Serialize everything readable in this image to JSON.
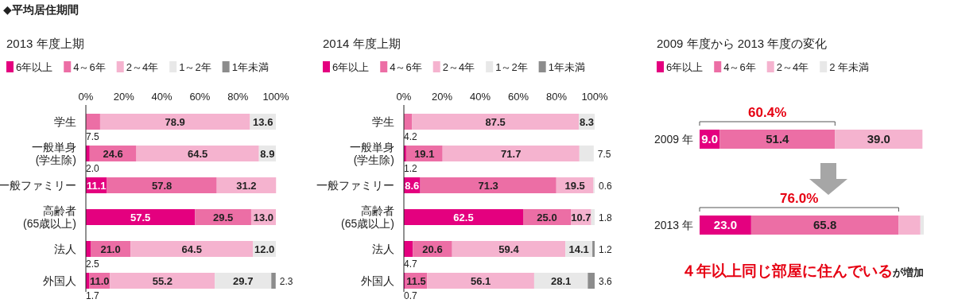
{
  "chart_data": [
    {
      "type": "bar",
      "orientation": "horizontal",
      "stacked": true,
      "title": "2013 年度上期",
      "annotations": [
        "◆平均居住期間"
      ],
      "categories": [
        "学生",
        "一般単身\n(学生除)",
        "一般ファミリー",
        "高齢者\n(65歳以上)",
        "法人",
        "外国人"
      ],
      "series": [
        {
          "name": "6年以上",
          "color": "#e4007f",
          "values": [
            null,
            2.0,
            11.1,
            57.5,
            2.5,
            1.7
          ],
          "value_labels": [
            null,
            "2.0",
            "11.1",
            "57.5",
            "2.5",
            "1.7"
          ]
        },
        {
          "name": "4～6年",
          "color": "#ec6ea5",
          "values": [
            7.5,
            24.6,
            57.8,
            29.5,
            21.0,
            11.0
          ],
          "value_labels": [
            "7.5",
            "24.6",
            "57.8",
            "29.5",
            "21.0",
            "11.0"
          ]
        },
        {
          "name": "2～4年",
          "color": "#f5b3cf",
          "values": [
            78.9,
            64.5,
            31.2,
            13.0,
            64.5,
            55.2
          ],
          "value_labels": [
            "78.9",
            "64.5",
            "31.2",
            "13.0",
            "64.5",
            "55.2"
          ]
        },
        {
          "name": "1～2年",
          "color": "#e8e8e8",
          "values": [
            13.6,
            8.9,
            null,
            null,
            12.0,
            29.7
          ],
          "value_labels": [
            "13.6",
            "8.9",
            null,
            null,
            "12.0",
            "29.7"
          ]
        },
        {
          "name": "1年未満",
          "color": "#8c8c8c",
          "values": [
            null,
            null,
            null,
            null,
            null,
            2.3
          ],
          "value_labels": [
            null,
            null,
            null,
            null,
            null,
            "2.3"
          ]
        }
      ],
      "xlim": [
        0,
        100
      ],
      "xticks": [
        {
          "value": 0,
          "label": "0%"
        },
        {
          "value": 20,
          "label": "20%"
        },
        {
          "value": 40,
          "label": "40%"
        },
        {
          "value": 60,
          "label": "60%"
        },
        {
          "value": 80,
          "label": "80%"
        },
        {
          "value": 100,
          "label": "100%"
        }
      ],
      "legend": "top left"
    },
    {
      "type": "bar",
      "orientation": "horizontal",
      "stacked": true,
      "title": "2014 年度上期",
      "categories": [
        "学生",
        "一般単身\n(学生除)",
        "一般ファミリー",
        "高齢者\n(65歳以上)",
        "法人",
        "外国人"
      ],
      "series": [
        {
          "name": "6年以上",
          "color": "#e4007f",
          "values": [
            null,
            1.2,
            8.6,
            62.5,
            4.7,
            0.7
          ],
          "value_labels": [
            null,
            "1.2",
            "8.6",
            "62.5",
            "4.7",
            "0.7"
          ]
        },
        {
          "name": "4～6年",
          "color": "#ec6ea5",
          "values": [
            4.2,
            19.1,
            71.3,
            25.0,
            20.6,
            11.5
          ],
          "value_labels": [
            "4.2",
            "19.1",
            "71.3",
            "25.0",
            "20.6",
            "11.5"
          ]
        },
        {
          "name": "2～4年",
          "color": "#f5b3cf",
          "values": [
            87.5,
            71.7,
            19.5,
            10.7,
            59.4,
            56.1
          ],
          "value_labels": [
            "87.5",
            "71.7",
            "19.5",
            "10.7",
            "59.4",
            "56.1"
          ]
        },
        {
          "name": "1～2年",
          "color": "#e8e8e8",
          "values": [
            8.3,
            7.5,
            0.6,
            1.8,
            14.1,
            28.1
          ],
          "value_labels": [
            "8.3",
            "7.5",
            "0.6",
            "1.8",
            "14.1",
            "28.1"
          ]
        },
        {
          "name": "1年未満",
          "color": "#8c8c8c",
          "values": [
            null,
            null,
            null,
            null,
            1.2,
            3.6
          ],
          "value_labels": [
            null,
            null,
            null,
            null,
            "1.2",
            "3.6"
          ]
        }
      ],
      "xlim": [
        0,
        100
      ],
      "xticks": [
        {
          "value": 0,
          "label": "0%"
        },
        {
          "value": 20,
          "label": "20%"
        },
        {
          "value": 40,
          "label": "40%"
        },
        {
          "value": 60,
          "label": "60%"
        },
        {
          "value": 80,
          "label": "80%"
        },
        {
          "value": 100,
          "label": "100%"
        }
      ],
      "legend": "top left"
    },
    {
      "type": "bar",
      "orientation": "horizontal",
      "stacked": true,
      "title": "2009 年度から 2013 年度の変化",
      "categories": [
        "2009 年",
        "2013 年"
      ],
      "series": [
        {
          "name": "6年以上",
          "color": "#e4007f",
          "values": [
            9.0,
            23.0
          ],
          "value_labels": [
            "9.0",
            "23.0"
          ]
        },
        {
          "name": "4～6年",
          "color": "#ec6ea5",
          "values": [
            51.4,
            65.8
          ],
          "value_labels": [
            "51.4",
            "65.8"
          ]
        },
        {
          "name": "2～4年",
          "color": "#f5b3cf",
          "values": [
            39.0,
            9.7
          ],
          "value_labels": [
            "39.0",
            null
          ]
        },
        {
          "name": "2 年未満",
          "color": "#e8e8e8",
          "values": [
            null,
            1.5
          ],
          "value_labels": [
            null,
            null
          ]
        }
      ],
      "annotations": [
        "60.4%",
        "76.0%",
        "４年以上同じ部屋に住んでいる",
        "が増加"
      ],
      "legend": "top left"
    }
  ]
}
